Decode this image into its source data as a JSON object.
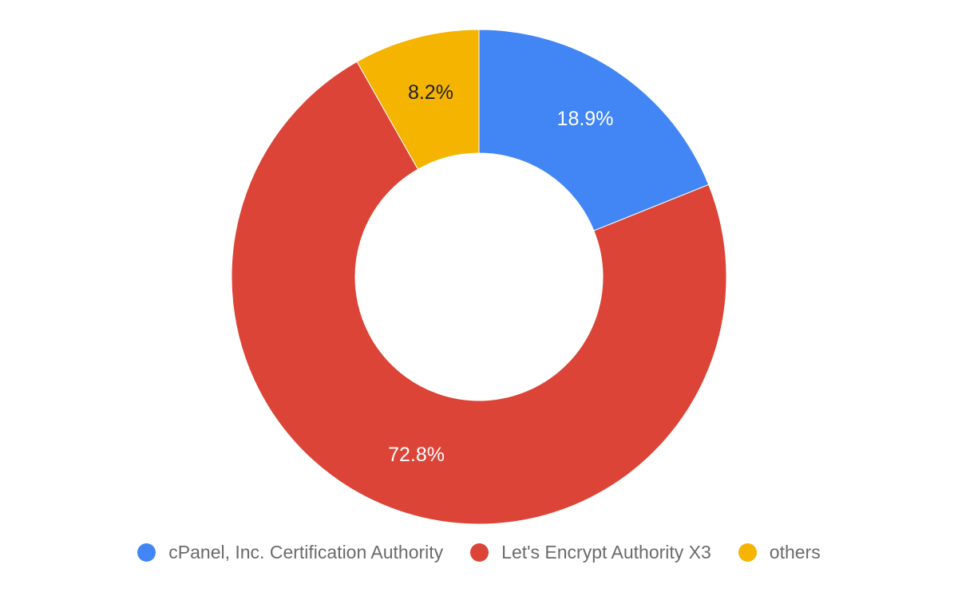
{
  "chart_data": {
    "type": "pie",
    "donut": true,
    "title": "",
    "categories": [
      "cPanel, Inc. Certification Authority",
      "Let's Encrypt Authority X3",
      "others"
    ],
    "values": [
      18.9,
      72.8,
      8.2
    ],
    "value_labels": [
      "18.9%",
      "72.8%",
      "8.2%"
    ],
    "colors": [
      "#4285f4",
      "#db4437",
      "#f4b400"
    ],
    "label_colors": [
      "#ffffff",
      "#ffffff",
      "#222222"
    ],
    "legend_position": "bottom",
    "start_angle_deg": 0,
    "direction": "clockwise"
  }
}
